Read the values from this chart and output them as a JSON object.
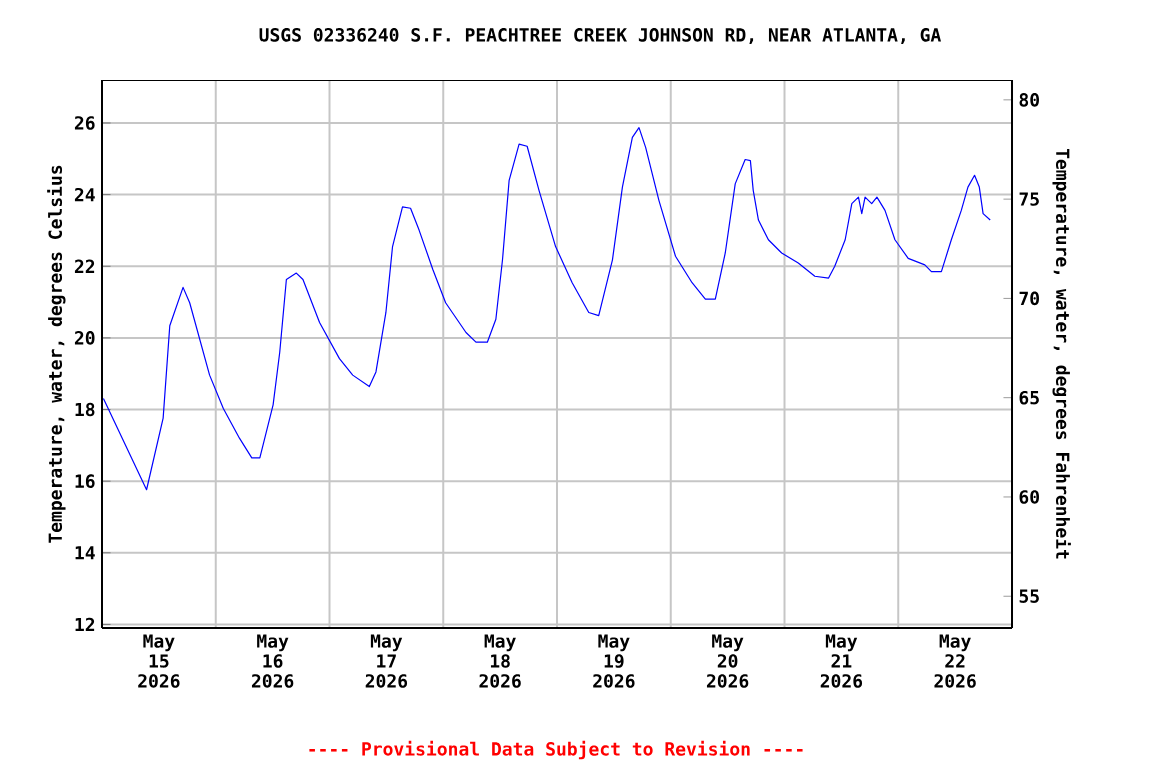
{
  "chart_data": {
    "type": "line",
    "title": "USGS 02336240 S.F. PEACHTREE CREEK JOHNSON RD, NEAR ATLANTA, GA",
    "ylabel": "Temperature, water, degrees Celsius",
    "y2label": "Temperature, water, degrees Fahrenheit",
    "annotations": [
      "---- Provisional Data Subject to Revision ----"
    ],
    "xlim": [
      "2026-05-15T00:00",
      "2026-05-23T00:00"
    ],
    "xticks": [
      {
        "value": "2026-05-15T12:00",
        "label": "May 15 2026"
      },
      {
        "value": "2026-05-16T12:00",
        "label": "May 16 2026"
      },
      {
        "value": "2026-05-17T12:00",
        "label": "May 17 2026"
      },
      {
        "value": "2026-05-18T12:00",
        "label": "May 18 2026"
      },
      {
        "value": "2026-05-19T12:00",
        "label": "May 19 2026"
      },
      {
        "value": "2026-05-20T12:00",
        "label": "May 20 2026"
      },
      {
        "value": "2026-05-21T12:00",
        "label": "May 21 2026"
      },
      {
        "value": "2026-05-22T12:00",
        "label": "May 22 2026"
      },
      {
        "value": "2026-05-16T00:00",
        "label": null
      },
      {
        "value": "2026-05-17T00:00",
        "label": null
      },
      {
        "value": "2026-05-18T00:00",
        "label": null
      },
      {
        "value": "2026-05-19T00:00",
        "label": null
      },
      {
        "value": "2026-05-20T00:00",
        "label": null
      },
      {
        "value": "2026-05-21T00:00",
        "label": null
      },
      {
        "value": "2026-05-22T00:00",
        "label": null
      }
    ],
    "ylim": [
      11.9,
      27.2
    ],
    "yticks": [
      12,
      14,
      16,
      18,
      20,
      22,
      24,
      26
    ],
    "y2lim": [
      53.4,
      81.0
    ],
    "y2ticks": [
      55,
      60,
      65,
      70,
      75,
      80
    ],
    "grid": true,
    "marker": "none",
    "line_style": "solid",
    "series": [
      {
        "color": "#0000ff",
        "x": [
          "2026-05-15T00:18",
          "2026-05-15T09:24",
          "2026-05-15T12:54",
          "2026-05-15T14:18",
          "2026-05-15T17:06",
          "2026-05-15T18:30",
          "2026-05-15T20:36",
          "2026-05-15T22:42",
          "2026-05-16T01:36",
          "2026-05-16T05:00",
          "2026-05-16T07:36",
          "2026-05-16T09:18",
          "2026-05-16T12:06",
          "2026-05-16T13:30",
          "2026-05-16T14:54",
          "2026-05-16T17:00",
          "2026-05-16T18:24",
          "2026-05-16T21:54",
          "2026-05-17T02:06",
          "2026-05-17T04:54",
          "2026-05-17T08:24",
          "2026-05-17T09:48",
          "2026-05-17T11:54",
          "2026-05-17T13:18",
          "2026-05-17T15:24",
          "2026-05-17T17:06",
          "2026-05-17T18:54",
          "2026-05-17T21:48",
          "2026-05-18T00:30",
          "2026-05-18T04:48",
          "2026-05-18T06:54",
          "2026-05-18T09:18",
          "2026-05-18T11:06",
          "2026-05-18T12:30",
          "2026-05-18T13:54",
          "2026-05-18T16:00",
          "2026-05-18T17:42",
          "2026-05-18T20:12",
          "2026-05-18T23:42",
          "2026-05-19T03:12",
          "2026-05-19T06:42",
          "2026-05-19T08:48",
          "2026-05-19T11:42",
          "2026-05-19T13:48",
          "2026-05-19T15:54",
          "2026-05-19T17:18",
          "2026-05-19T18:42",
          "2026-05-19T21:30",
          "2026-05-20T01:00",
          "2026-05-20T04:30",
          "2026-05-20T07:18",
          "2026-05-20T09:24",
          "2026-05-20T11:30",
          "2026-05-20T13:36",
          "2026-05-20T15:42",
          "2026-05-20T16:48",
          "2026-05-20T17:24",
          "2026-05-20T18:30",
          "2026-05-20T20:36",
          "2026-05-20T23:24",
          "2026-05-21T02:54",
          "2026-05-21T06:24",
          "2026-05-21T09:18",
          "2026-05-21T10:36",
          "2026-05-21T12:48",
          "2026-05-21T14:12",
          "2026-05-21T15:36",
          "2026-05-21T16:18",
          "2026-05-21T17:00",
          "2026-05-21T18:24",
          "2026-05-21T19:30",
          "2026-05-21T21:12",
          "2026-05-21T23:18",
          "2026-05-22T02:06",
          "2026-05-22T05:36",
          "2026-05-22T07:00",
          "2026-05-22T09:06",
          "2026-05-22T11:12",
          "2026-05-22T13:18",
          "2026-05-22T14:42",
          "2026-05-22T16:06",
          "2026-05-22T17:06",
          "2026-05-22T17:54",
          "2026-05-22T19:24"
        ],
        "values": [
          18.31,
          15.76,
          17.76,
          20.34,
          21.41,
          20.98,
          19.97,
          18.96,
          18.03,
          17.2,
          16.65,
          16.65,
          18.13,
          19.6,
          21.63,
          21.81,
          21.63,
          20.43,
          19.42,
          18.96,
          18.64,
          19.05,
          20.71,
          22.55,
          23.66,
          23.62,
          23.01,
          21.91,
          20.98,
          20.15,
          19.88,
          19.88,
          20.52,
          22.18,
          24.4,
          25.41,
          25.35,
          24.12,
          22.55,
          21.54,
          20.71,
          20.62,
          22.18,
          24.21,
          25.6,
          25.87,
          25.32,
          23.84,
          22.28,
          21.54,
          21.08,
          21.08,
          22.37,
          24.3,
          24.98,
          24.95,
          24.12,
          23.29,
          22.74,
          22.37,
          22.09,
          21.72,
          21.67,
          22.0,
          22.74,
          23.75,
          23.93,
          23.47,
          23.93,
          23.75,
          23.93,
          23.56,
          22.74,
          22.22,
          22.04,
          21.85,
          21.85,
          22.74,
          23.56,
          24.21,
          24.54,
          24.21,
          23.47,
          23.29
        ]
      }
    ]
  }
}
